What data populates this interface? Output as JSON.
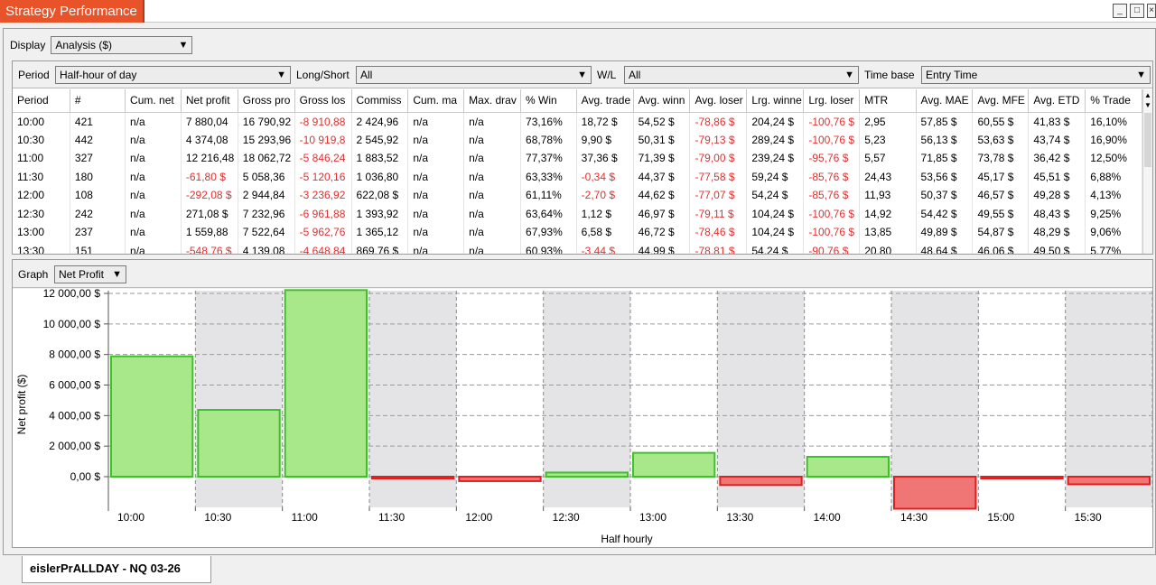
{
  "window": {
    "title": "Strategy Performance",
    "minimize_glyph": "_",
    "maximize_glyph": "□",
    "close_glyph": "×"
  },
  "display": {
    "label": "Display",
    "value": "Analysis ($)"
  },
  "filters": {
    "period": {
      "label": "Period",
      "value": "Half-hour of day"
    },
    "long_short": {
      "label": "Long/Short",
      "value": "All"
    },
    "win_loss": {
      "label": "W/L",
      "value": "All"
    },
    "time_base": {
      "label": "Time base",
      "value": "Entry Time"
    }
  },
  "table": {
    "columns": [
      "Period",
      "#",
      "Cum. net",
      "Net profit",
      "Gross pro",
      "Gross los",
      "Commiss",
      "Cum. ma",
      "Max. drav",
      "% Win",
      "Avg. trade",
      "Avg. winn",
      "Avg. loser",
      "Lrg. winne",
      "Lrg. loser",
      "MTR",
      "Avg. MAE",
      "Avg. MFE",
      "Avg. ETD",
      "% Trade"
    ],
    "rows": [
      [
        "10:00",
        "421",
        "n/a",
        "7 880,04",
        "16 790,92",
        "-8 910,88",
        "2 424,96",
        "n/a",
        "n/a",
        "73,16%",
        "18,72 $",
        "54,52 $",
        "-78,86 $",
        "204,24 $",
        "-100,76 $",
        "2,95",
        "57,85 $",
        "60,55 $",
        "41,83 $",
        "16,10%"
      ],
      [
        "10:30",
        "442",
        "n/a",
        "4 374,08",
        "15 293,96",
        "-10 919,8",
        "2 545,92",
        "n/a",
        "n/a",
        "68,78%",
        "9,90 $",
        "50,31 $",
        "-79,13 $",
        "289,24 $",
        "-100,76 $",
        "5,23",
        "56,13 $",
        "53,63 $",
        "43,74 $",
        "16,90%"
      ],
      [
        "11:00",
        "327",
        "n/a",
        "12 216,48",
        "18 062,72",
        "-5 846,24",
        "1 883,52",
        "n/a",
        "n/a",
        "77,37%",
        "37,36 $",
        "71,39 $",
        "-79,00 $",
        "239,24 $",
        "-95,76 $",
        "5,57",
        "71,85 $",
        "73,78 $",
        "36,42 $",
        "12,50%"
      ],
      [
        "11:30",
        "180",
        "n/a",
        "-61,80 $",
        "5 058,36",
        "-5 120,16",
        "1 036,80",
        "n/a",
        "n/a",
        "63,33%",
        "-0,34 $",
        "44,37 $",
        "-77,58 $",
        "59,24 $",
        "-85,76 $",
        "24,43",
        "53,56 $",
        "45,17 $",
        "45,51 $",
        "6,88%"
      ],
      [
        "12:00",
        "108",
        "n/a",
        "-292,08 $",
        "2 944,84",
        "-3 236,92",
        "622,08 $",
        "n/a",
        "n/a",
        "61,11%",
        "-2,70 $",
        "44,62 $",
        "-77,07 $",
        "54,24 $",
        "-85,76 $",
        "11,93",
        "50,37 $",
        "46,57 $",
        "49,28 $",
        "4,13%"
      ],
      [
        "12:30",
        "242",
        "n/a",
        "271,08 $",
        "7 232,96",
        "-6 961,88",
        "1 393,92",
        "n/a",
        "n/a",
        "63,64%",
        "1,12 $",
        "46,97 $",
        "-79,11 $",
        "104,24 $",
        "-100,76 $",
        "14,92",
        "54,42 $",
        "49,55 $",
        "48,43 $",
        "9,25%"
      ],
      [
        "13:00",
        "237",
        "n/a",
        "1 559,88",
        "7 522,64",
        "-5 962,76",
        "1 365,12",
        "n/a",
        "n/a",
        "67,93%",
        "6,58 $",
        "46,72 $",
        "-78,46 $",
        "104,24 $",
        "-100,76 $",
        "13,85",
        "49,89 $",
        "54,87 $",
        "48,29 $",
        "9,06%"
      ],
      [
        "13:30",
        "151",
        "n/a",
        "-548,76 $",
        "4 139,08",
        "-4 648,84",
        "869,76 $",
        "n/a",
        "n/a",
        "60,93%",
        "-3,44 $",
        "44,99 $",
        "-78,81 $",
        "54,24 $",
        "-90,76 $",
        "20,80",
        "48,64 $",
        "46,06 $",
        "49,50 $",
        "5,77%"
      ]
    ]
  },
  "graph": {
    "label": "Graph",
    "value": "Net Profit"
  },
  "chart_data": {
    "type": "bar",
    "categories": [
      "10:00",
      "10:30",
      "11:00",
      "11:30",
      "12:00",
      "12:30",
      "13:00",
      "13:30",
      "14:00",
      "14:30",
      "15:00",
      "15:30"
    ],
    "values": [
      7880.04,
      4374.08,
      12216.48,
      -61.8,
      -292.08,
      271.08,
      1559.88,
      -548.76,
      1300,
      -2100,
      -100,
      -500
    ],
    "xlabel": "Half hourly",
    "ylabel": "Net profit ($)",
    "ylim": [
      -2500,
      12300
    ],
    "yticks": [
      0,
      2000,
      4000,
      6000,
      8000,
      10000,
      12000
    ],
    "ytick_labels": [
      "0,00 $",
      "2 000,00 $",
      "4 000,00 $",
      "6 000,00 $",
      "8 000,00 $",
      "10 000,00 $",
      "12 000,00 $"
    ],
    "grid": true,
    "colors": {
      "positive_fill": "#a8e88a",
      "positive_stroke": "#3fbf2a",
      "negative_fill": "#f07575",
      "negative_stroke": "#e02020",
      "band": "#e4e4e6"
    }
  },
  "bottom_tab": {
    "label": "eislerPrALLDAY - NQ 03-26"
  }
}
